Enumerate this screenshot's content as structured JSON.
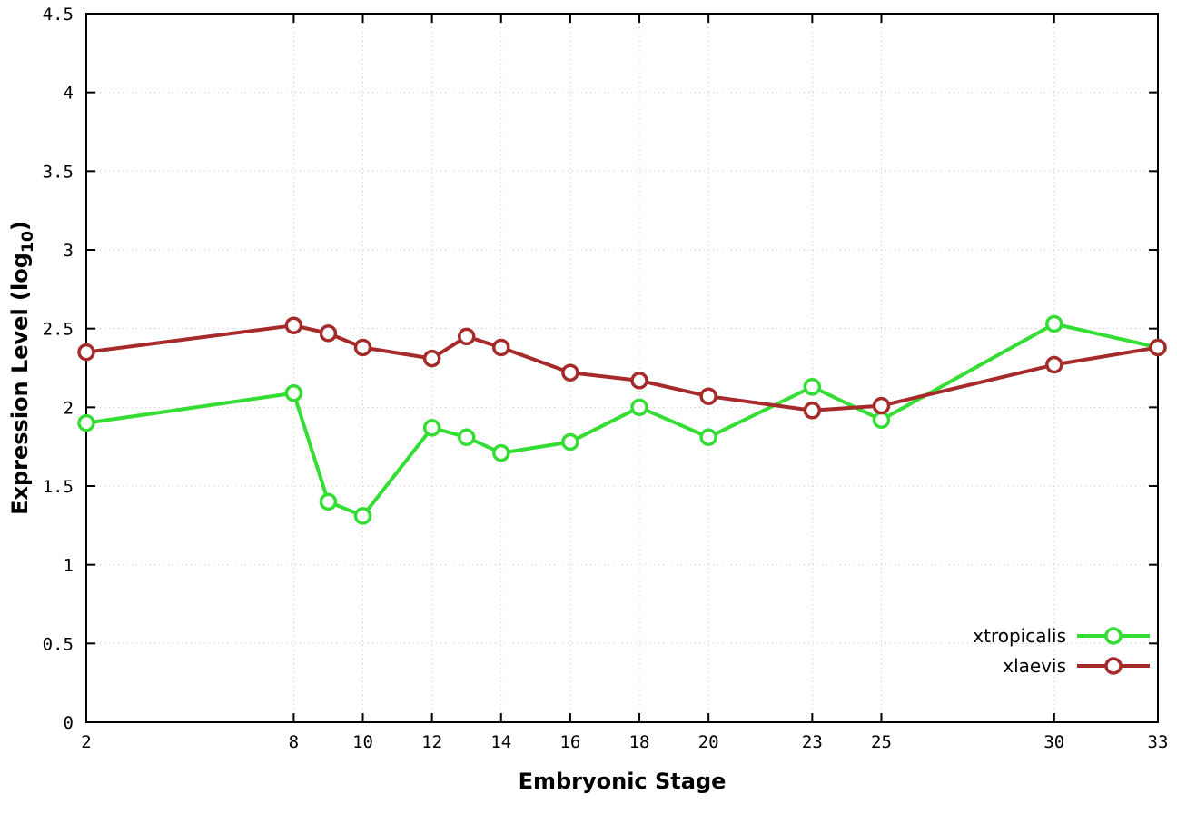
{
  "chart_data": {
    "type": "line",
    "title": "",
    "xlabel": "Embryonic Stage",
    "ylabel": "Expression Level (log10)",
    "ylabel_parts": {
      "pre": "Expression Level (log",
      "sub": "10",
      "post": ")"
    },
    "xlim": [
      2,
      33
    ],
    "ylim": [
      0,
      4.5
    ],
    "xticks": [
      2,
      8,
      10,
      12,
      14,
      16,
      18,
      20,
      23,
      25,
      30,
      33
    ],
    "yticks": [
      0,
      0.5,
      1,
      1.5,
      2,
      2.5,
      3,
      3.5,
      4,
      4.5
    ],
    "x": [
      2,
      8,
      9,
      10,
      12,
      13,
      14,
      16,
      18,
      20,
      23,
      25,
      30,
      33
    ],
    "series": [
      {
        "name": "xtropicalis",
        "color": "#33dd33",
        "marker": "open-circle",
        "values": [
          1.9,
          2.09,
          1.4,
          1.31,
          1.87,
          1.81,
          1.71,
          1.78,
          2.0,
          1.81,
          2.13,
          1.92,
          2.53,
          2.38
        ]
      },
      {
        "name": "xlaevis",
        "color": "#a52a2a",
        "marker": "open-circle",
        "values": [
          2.35,
          2.52,
          2.47,
          2.38,
          2.31,
          2.45,
          2.38,
          2.22,
          2.17,
          2.07,
          1.98,
          2.01,
          2.27,
          2.38
        ]
      }
    ],
    "grid": true,
    "grid_color": "#c8c8c8",
    "axis_color": "#000000",
    "background": "#ffffff",
    "legend_position": "bottom-right"
  }
}
